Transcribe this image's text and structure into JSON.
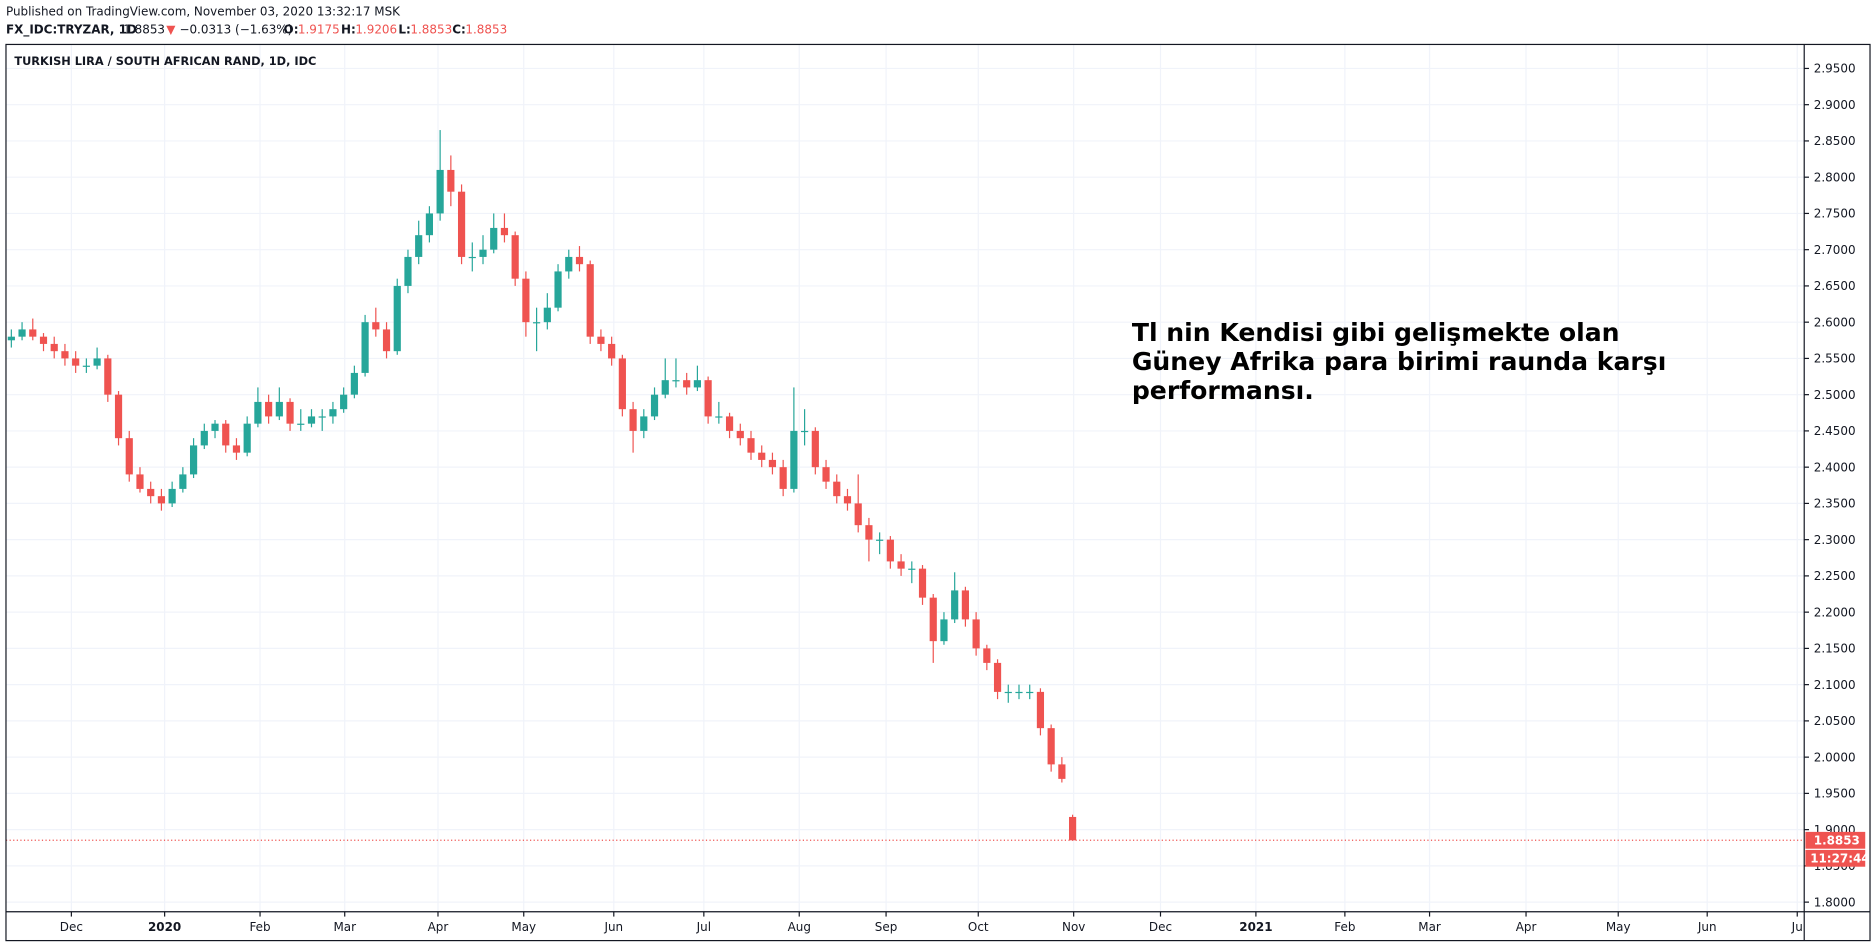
{
  "chart_data": {
    "type": "candlestick",
    "published": "Published on TradingView.com, November 03, 2020 13:32:17 MSK",
    "symbol": "FX_IDC:TRYZAR, 1D",
    "change_arrow": "▼",
    "change": "−0.0313 (−1.63%)",
    "ohlc_labels": [
      "O:",
      "H:",
      "L:",
      "C:"
    ],
    "title": "TURKISH LIRA / SOUTH AFRICAN RAND, 1D, IDC",
    "countdown": "11:27:44",
    "annotation": [
      "Tl nin Kendisi gibi gelişmekte olan",
      "Güney Afrika para birimi raunda karşı",
      "performansı."
    ],
    "up_color": "#26a69a",
    "down_color": "#ef5350",
    "grid": true,
    "ylim": [
      1.7867,
      2.9831
    ],
    "yticks": [
      {
        "value": 1.8,
        "label": "1.8000"
      },
      {
        "value": 1.85,
        "label": "1.8500"
      },
      {
        "value": 1.9,
        "label": "1.9000"
      },
      {
        "value": 1.95,
        "label": "1.9500"
      },
      {
        "value": 2.0,
        "label": "2.0000"
      },
      {
        "value": 2.05,
        "label": "2.0500"
      },
      {
        "value": 2.1,
        "label": "2.1000"
      },
      {
        "value": 2.15,
        "label": "2.1500"
      },
      {
        "value": 2.2,
        "label": "2.2000"
      },
      {
        "value": 2.25,
        "label": "2.2500"
      },
      {
        "value": 2.3,
        "label": "2.3000"
      },
      {
        "value": 2.35,
        "label": "2.3500"
      },
      {
        "value": 2.4,
        "label": "2.4000"
      },
      {
        "value": 2.45,
        "label": "2.4500"
      },
      {
        "value": 2.5,
        "label": "2.5000"
      },
      {
        "value": 2.55,
        "label": "2.5500"
      },
      {
        "value": 2.6,
        "label": "2.6000"
      },
      {
        "value": 2.65,
        "label": "2.6500"
      },
      {
        "value": 2.7,
        "label": "2.7000"
      },
      {
        "value": 2.75,
        "label": "2.7500"
      },
      {
        "value": 2.8,
        "label": "2.8000"
      },
      {
        "value": 2.85,
        "label": "2.8500"
      },
      {
        "value": 2.9,
        "label": "2.9000"
      },
      {
        "value": 2.95,
        "label": "2.9500"
      }
    ],
    "xlim": [
      -0.5,
      167.25
    ],
    "xticks": [
      {
        "value": 5.6,
        "label": "Dec"
      },
      {
        "value": 14.3,
        "label": "2020"
      },
      {
        "value": 23.2,
        "label": "Feb"
      },
      {
        "value": 31.1,
        "label": "Mar"
      },
      {
        "value": 39.8,
        "label": "Apr"
      },
      {
        "value": 47.8,
        "label": "May"
      },
      {
        "value": 56.2,
        "label": "Jun"
      },
      {
        "value": 64.6,
        "label": "Jul"
      },
      {
        "value": 73.5,
        "label": "Aug"
      },
      {
        "value": 81.6,
        "label": "Sep"
      },
      {
        "value": 90.2,
        "label": "Oct"
      },
      {
        "value": 99.1,
        "label": "Nov"
      },
      {
        "value": 107.2,
        "label": "Dec"
      },
      {
        "value": 116.1,
        "label": "2021"
      },
      {
        "value": 124.4,
        "label": "Feb"
      },
      {
        "value": 132.3,
        "label": "Mar"
      },
      {
        "value": 141.3,
        "label": "Apr"
      },
      {
        "value": 149.9,
        "label": "May"
      },
      {
        "value": 158.2,
        "label": "Jun"
      },
      {
        "value": 166.6,
        "label": "Ju"
      }
    ],
    "candles": [
      [
        2.575,
        2.59,
        2.565,
        2.58
      ],
      [
        2.58,
        2.6,
        2.575,
        2.59
      ],
      [
        2.59,
        2.605,
        2.575,
        2.58
      ],
      [
        2.58,
        2.585,
        2.56,
        2.57
      ],
      [
        2.57,
        2.58,
        2.55,
        2.56
      ],
      [
        2.56,
        2.57,
        2.54,
        2.55
      ],
      [
        2.55,
        2.56,
        2.53,
        2.54
      ],
      [
        2.54,
        2.55,
        2.53,
        2.54
      ],
      [
        2.54,
        2.565,
        2.535,
        2.55
      ],
      [
        2.55,
        2.555,
        2.49,
        2.5
      ],
      [
        2.5,
        2.505,
        2.43,
        2.44
      ],
      [
        2.44,
        2.45,
        2.38,
        2.39
      ],
      [
        2.39,
        2.4,
        2.365,
        2.37
      ],
      [
        2.37,
        2.38,
        2.35,
        2.36
      ],
      [
        2.36,
        2.37,
        2.34,
        2.35
      ],
      [
        2.35,
        2.38,
        2.345,
        2.37
      ],
      [
        2.37,
        2.4,
        2.365,
        2.39
      ],
      [
        2.39,
        2.44,
        2.385,
        2.43
      ],
      [
        2.43,
        2.46,
        2.425,
        2.45
      ],
      [
        2.45,
        2.465,
        2.44,
        2.46
      ],
      [
        2.46,
        2.465,
        2.42,
        2.43
      ],
      [
        2.43,
        2.44,
        2.41,
        2.42
      ],
      [
        2.42,
        2.47,
        2.415,
        2.46
      ],
      [
        2.46,
        2.51,
        2.455,
        2.49
      ],
      [
        2.49,
        2.5,
        2.46,
        2.47
      ],
      [
        2.47,
        2.51,
        2.465,
        2.49
      ],
      [
        2.49,
        2.495,
        2.45,
        2.46
      ],
      [
        2.46,
        2.48,
        2.45,
        2.46
      ],
      [
        2.46,
        2.48,
        2.455,
        2.47
      ],
      [
        2.47,
        2.48,
        2.45,
        2.47
      ],
      [
        2.47,
        2.49,
        2.46,
        2.48
      ],
      [
        2.48,
        2.51,
        2.475,
        2.5
      ],
      [
        2.5,
        2.54,
        2.495,
        2.53
      ],
      [
        2.53,
        2.61,
        2.525,
        2.6
      ],
      [
        2.6,
        2.62,
        2.58,
        2.59
      ],
      [
        2.59,
        2.6,
        2.55,
        2.56
      ],
      [
        2.56,
        2.66,
        2.555,
        2.65
      ],
      [
        2.65,
        2.7,
        2.64,
        2.69
      ],
      [
        2.69,
        2.74,
        2.68,
        2.72
      ],
      [
        2.72,
        2.76,
        2.71,
        2.75
      ],
      [
        2.75,
        2.865,
        2.74,
        2.81
      ],
      [
        2.81,
        2.83,
        2.76,
        2.78
      ],
      [
        2.78,
        2.79,
        2.68,
        2.69
      ],
      [
        2.69,
        2.71,
        2.67,
        2.69
      ],
      [
        2.69,
        2.72,
        2.68,
        2.7
      ],
      [
        2.7,
        2.75,
        2.695,
        2.73
      ],
      [
        2.73,
        2.75,
        2.71,
        2.72
      ],
      [
        2.72,
        2.725,
        2.65,
        2.66
      ],
      [
        2.66,
        2.67,
        2.58,
        2.6
      ],
      [
        2.6,
        2.62,
        2.56,
        2.6
      ],
      [
        2.6,
        2.64,
        2.59,
        2.62
      ],
      [
        2.62,
        2.68,
        2.615,
        2.67
      ],
      [
        2.67,
        2.7,
        2.66,
        2.69
      ],
      [
        2.69,
        2.705,
        2.67,
        2.68
      ],
      [
        2.68,
        2.685,
        2.57,
        2.58
      ],
      [
        2.58,
        2.59,
        2.56,
        2.57
      ],
      [
        2.57,
        2.58,
        2.54,
        2.55
      ],
      [
        2.55,
        2.555,
        2.47,
        2.48
      ],
      [
        2.48,
        2.49,
        2.42,
        2.45
      ],
      [
        2.45,
        2.48,
        2.44,
        2.47
      ],
      [
        2.47,
        2.51,
        2.465,
        2.5
      ],
      [
        2.5,
        2.55,
        2.495,
        2.52
      ],
      [
        2.52,
        2.55,
        2.51,
        2.52
      ],
      [
        2.52,
        2.53,
        2.5,
        2.51
      ],
      [
        2.51,
        2.54,
        2.505,
        2.52
      ],
      [
        2.52,
        2.525,
        2.46,
        2.47
      ],
      [
        2.47,
        2.49,
        2.46,
        2.47
      ],
      [
        2.47,
        2.475,
        2.44,
        2.45
      ],
      [
        2.45,
        2.46,
        2.43,
        2.44
      ],
      [
        2.44,
        2.45,
        2.41,
        2.42
      ],
      [
        2.42,
        2.43,
        2.4,
        2.41
      ],
      [
        2.41,
        2.42,
        2.39,
        2.4
      ],
      [
        2.4,
        2.41,
        2.36,
        2.37
      ],
      [
        2.37,
        2.51,
        2.365,
        2.45
      ],
      [
        2.45,
        2.48,
        2.43,
        2.45
      ],
      [
        2.45,
        2.455,
        2.39,
        2.4
      ],
      [
        2.4,
        2.41,
        2.37,
        2.38
      ],
      [
        2.38,
        2.39,
        2.35,
        2.36
      ],
      [
        2.36,
        2.37,
        2.34,
        2.35
      ],
      [
        2.35,
        2.39,
        2.31,
        2.32
      ],
      [
        2.32,
        2.33,
        2.27,
        2.3
      ],
      [
        2.3,
        2.31,
        2.28,
        2.3
      ],
      [
        2.3,
        2.305,
        2.26,
        2.27
      ],
      [
        2.27,
        2.28,
        2.25,
        2.26
      ],
      [
        2.26,
        2.27,
        2.24,
        2.26
      ],
      [
        2.26,
        2.265,
        2.21,
        2.22
      ],
      [
        2.22,
        2.225,
        2.13,
        2.16
      ],
      [
        2.16,
        2.2,
        2.155,
        2.19
      ],
      [
        2.19,
        2.255,
        2.185,
        2.23
      ],
      [
        2.23,
        2.235,
        2.18,
        2.19
      ],
      [
        2.19,
        2.2,
        2.14,
        2.15
      ],
      [
        2.15,
        2.155,
        2.12,
        2.13
      ],
      [
        2.13,
        2.135,
        2.08,
        2.09
      ],
      [
        2.09,
        2.1,
        2.075,
        2.09
      ],
      [
        2.09,
        2.1,
        2.08,
        2.09
      ],
      [
        2.09,
        2.1,
        2.08,
        2.09
      ],
      [
        2.09,
        2.095,
        2.03,
        2.04
      ],
      [
        2.04,
        2.045,
        1.98,
        1.99
      ],
      [
        1.99,
        2.0,
        1.965,
        1.97
      ],
      [
        1.9175,
        1.9206,
        1.8853,
        1.8853
      ]
    ]
  }
}
